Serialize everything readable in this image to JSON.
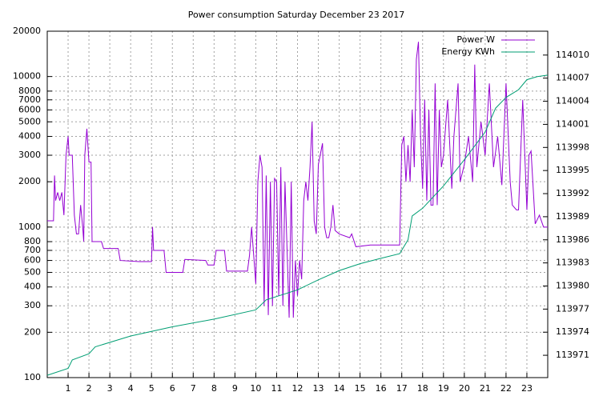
{
  "chart_data": {
    "type": "line",
    "title": "Power consumption Saturday December 23 2017",
    "xlim": [
      0,
      24
    ],
    "xticks": [
      1,
      2,
      3,
      4,
      5,
      6,
      7,
      8,
      9,
      10,
      11,
      12,
      13,
      14,
      15,
      16,
      17,
      18,
      19,
      20,
      21,
      22,
      23
    ],
    "ylim": [
      100,
      20000
    ],
    "yticks": [
      100,
      200,
      300,
      400,
      500,
      600,
      700,
      800,
      1000,
      2000,
      3000,
      4000,
      5000,
      6000,
      7000,
      8000,
      10000,
      20000
    ],
    "log_y": true,
    "y2lim": [
      113968.1,
      114013.1
    ],
    "y2ticks": [
      113971,
      113974,
      113977,
      113980,
      113983,
      113986,
      113989,
      113992,
      113995,
      113998,
      114001,
      114004,
      114007,
      114010
    ],
    "grid": true,
    "legend": "top-right",
    "series": [
      {
        "name": "Power W",
        "color": "#9400d3",
        "x": [
          0,
          0.3,
          0.35,
          0.4,
          0.5,
          0.6,
          0.7,
          0.8,
          0.9,
          1.0,
          1.05,
          1.2,
          1.3,
          1.4,
          1.5,
          1.6,
          1.7,
          1.75,
          1.8,
          1.9,
          2.0,
          2.1,
          2.15,
          2.6,
          2.7,
          3.4,
          3.5,
          4.4,
          5.0,
          5.05,
          5.1,
          5.6,
          5.7,
          6.5,
          6.6,
          7.6,
          7.7,
          8.0,
          8.1,
          8.5,
          8.6,
          9.6,
          9.7,
          9.8,
          9.9,
          10.0,
          10.1,
          10.2,
          10.3,
          10.4,
          10.5,
          10.6,
          10.7,
          10.8,
          10.9,
          11.0,
          11.1,
          11.2,
          11.3,
          11.4,
          11.6,
          11.7,
          11.8,
          11.9,
          12.0,
          12.1,
          12.2,
          12.3,
          12.4,
          12.5,
          12.6,
          12.7,
          12.8,
          12.9,
          13.0,
          13.2,
          13.3,
          13.4,
          13.5,
          13.6,
          13.7,
          13.8,
          14.0,
          14.5,
          14.6,
          14.8,
          15.5,
          16.9,
          17.0,
          17.1,
          17.2,
          17.3,
          17.4,
          17.5,
          17.6,
          17.7,
          17.8,
          17.9,
          18.0,
          18.1,
          18.2,
          18.3,
          18.4,
          18.5,
          18.6,
          18.7,
          18.8,
          18.9,
          19.0,
          19.2,
          19.4,
          19.5,
          19.7,
          19.8,
          20.0,
          20.2,
          20.4,
          20.5,
          20.6,
          20.8,
          21.0,
          21.2,
          21.4,
          21.6,
          21.8,
          22.0,
          22.2,
          22.3,
          22.5,
          22.6,
          22.8,
          23.0,
          23.1,
          23.2,
          23.4,
          23.6,
          23.8,
          24
        ],
        "values": [
          1100,
          1100,
          2200,
          1500,
          1700,
          1500,
          1700,
          1200,
          3000,
          4000,
          3000,
          3000,
          1200,
          900,
          900,
          1400,
          1000,
          800,
          3000,
          4500,
          2700,
          2700,
          800,
          800,
          720,
          720,
          600,
          590,
          590,
          1000,
          700,
          700,
          500,
          500,
          610,
          600,
          560,
          560,
          700,
          700,
          510,
          510,
          650,
          1000,
          650,
          420,
          2000,
          3000,
          2500,
          300,
          2200,
          260,
          2000,
          300,
          2100,
          2000,
          350,
          2500,
          300,
          2000,
          250,
          2000,
          250,
          600,
          350,
          600,
          450,
          1500,
          2000,
          1500,
          2500,
          5000,
          1100,
          900,
          2600,
          3600,
          1000,
          850,
          850,
          1000,
          1400,
          950,
          900,
          850,
          900,
          740,
          760,
          760,
          3500,
          4000,
          2000,
          3500,
          2000,
          6000,
          2500,
          13000,
          17000,
          4000,
          1800,
          7000,
          1500,
          6000,
          1400,
          1400,
          9000,
          1400,
          6000,
          2500,
          3000,
          7000,
          1800,
          4000,
          9000,
          2000,
          2600,
          4000,
          2000,
          12000,
          2500,
          5000,
          3000,
          9000,
          2500,
          4000,
          1900,
          9000,
          2000,
          1400,
          1300,
          1300,
          7000,
          1300,
          3000,
          3200,
          1050,
          1200,
          1000,
          1000
        ]
      },
      {
        "name": "Energy KWh",
        "color": "#009e73",
        "axis": "y2",
        "x": [
          0,
          1,
          1.2,
          2,
          2.3,
          4,
          6,
          8,
          10,
          10.5,
          12,
          13,
          14,
          15,
          16,
          16.9,
          17.3,
          17.5,
          18,
          19,
          20,
          21,
          21.5,
          22,
          22.6,
          23,
          23.5,
          24
        ],
        "values": [
          113968.4,
          113969.3,
          113970.4,
          113971.2,
          113972.1,
          113973.5,
          113974.7,
          113975.7,
          113976.9,
          113978.2,
          113979.5,
          113980.8,
          113982.0,
          113982.9,
          113983.6,
          113984.2,
          113986.0,
          113989.1,
          113990.1,
          113993.0,
          113996.4,
          114000.0,
          114003.1,
          114004.5,
          114005.5,
          114006.8,
          114007.2,
          114007.4
        ]
      }
    ]
  }
}
